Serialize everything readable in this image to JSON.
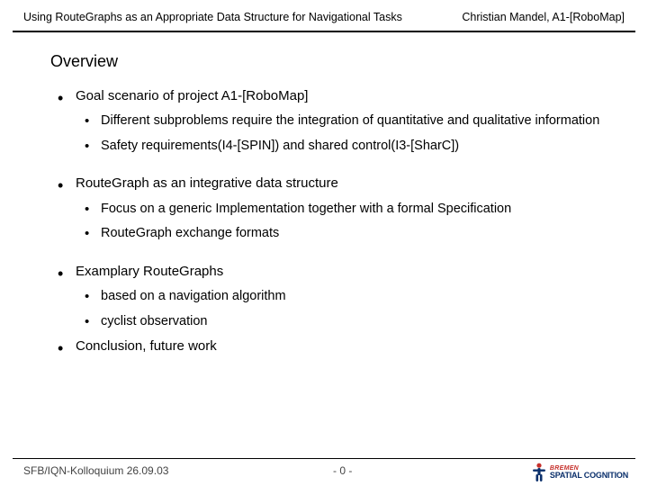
{
  "header": {
    "title_left": "Using RouteGraphs as an Appropriate Data Structure for Navigational Tasks",
    "title_right": "Christian Mandel, A1-[RoboMap]"
  },
  "content": {
    "heading": "Overview",
    "items": [
      {
        "text": "Goal scenario of project A1-[RoboMap]",
        "gap": "",
        "children": [
          {
            "text": "Different subproblems require the integration of quantitative and qualitative information"
          },
          {
            "text": "Safety requirements(I4-[SPIN]) and shared control(I3-[SharC])"
          }
        ]
      },
      {
        "text": "RouteGraph as an integrative data structure",
        "gap": "gap-lg",
        "children": [
          {
            "text": "Focus on a generic Implementation together with a formal Specification"
          },
          {
            "text": "RouteGraph exchange formats"
          }
        ]
      },
      {
        "text": "Examplary RouteGraphs",
        "gap": "gap-lg",
        "children": [
          {
            "text": "based on a navigation algorithm"
          },
          {
            "text": "cyclist observation"
          }
        ]
      },
      {
        "text": "Conclusion, future work",
        "gap": "",
        "children": []
      }
    ]
  },
  "footer": {
    "left": "SFB/IQN-Kolloquium 26.09.03",
    "center": "- 0 -",
    "logo_top": "BREMEN",
    "logo_bottom": "SPATIAL COGNITION"
  },
  "colors": {
    "text": "#000000",
    "footer_text": "#444444",
    "logo_red": "#c6302b",
    "logo_blue": "#0a2f6b",
    "background": "#ffffff"
  }
}
